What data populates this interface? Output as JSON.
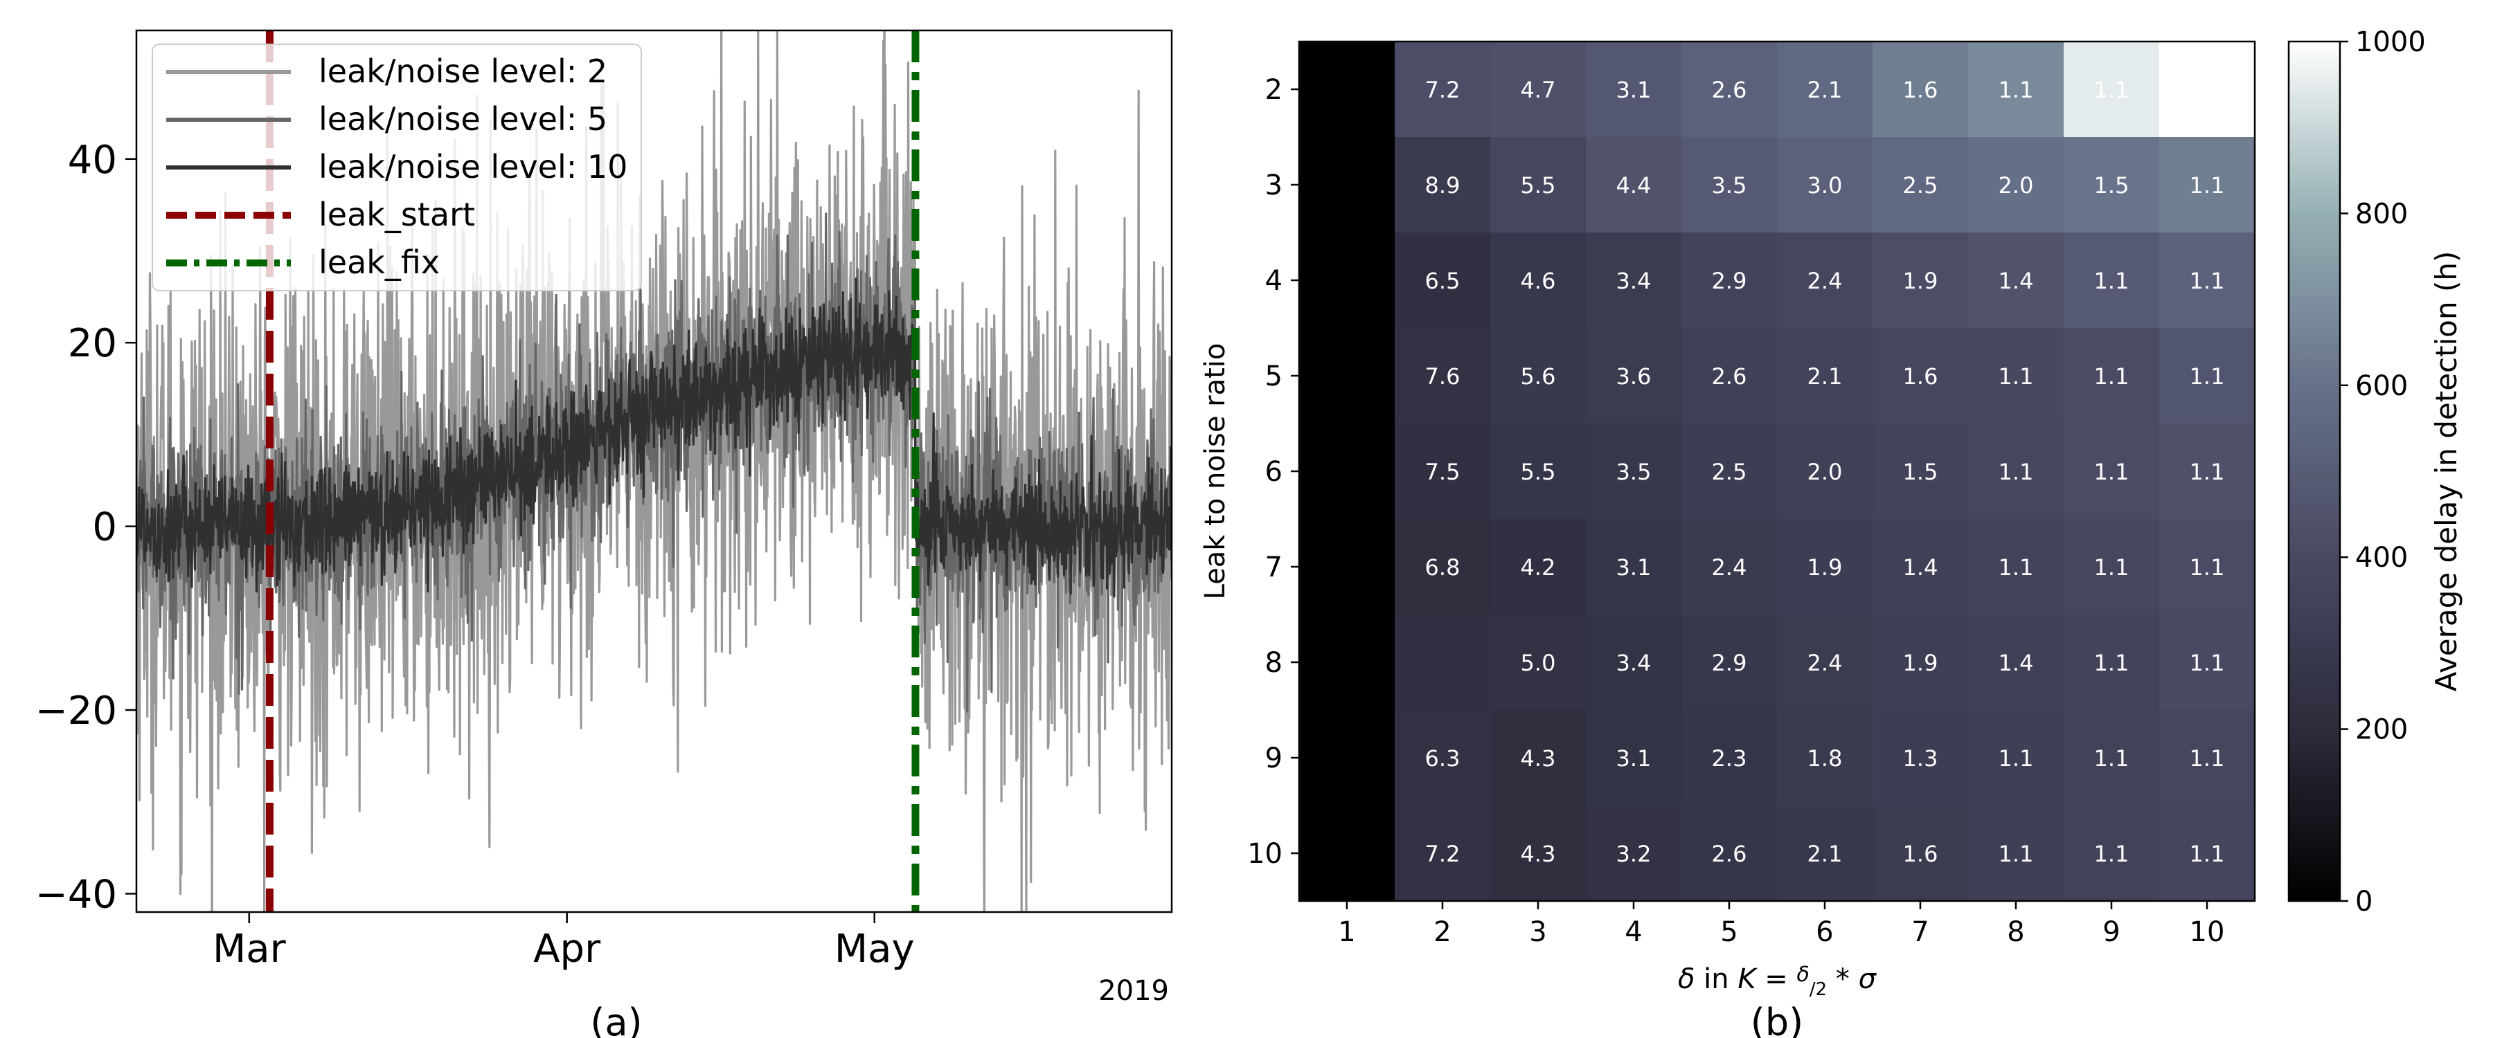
{
  "chart_data": [
    {
      "type": "line",
      "panel_label": "(a)",
      "year_label": "2019",
      "x_ticks": [
        "Mar",
        "Apr",
        "May"
      ],
      "x_range": [
        "2019-02-18",
        "2019-05-30"
      ],
      "y_ticks": [
        -40,
        -20,
        0,
        20,
        40
      ],
      "ylim": [
        -42,
        54
      ],
      "legend_position": "upper-left",
      "series": [
        {
          "name": "leak/noise level: 2",
          "color": "#999999",
          "noise_amplitude": 14,
          "peak_mean": 20
        },
        {
          "name": "leak/noise level: 5",
          "color": "#666666",
          "noise_amplitude": 5.5,
          "peak_mean": 19
        },
        {
          "name": "leak/noise level: 10",
          "color": "#303030",
          "noise_amplitude": 3,
          "peak_mean": 19
        }
      ],
      "vlines": [
        {
          "name": "leak_start",
          "date": "2019-03-03",
          "color": "#8b0000",
          "style": "dashed"
        },
        {
          "name": "leak_fix",
          "date": "2019-05-05",
          "color": "#006400",
          "style": "dashdot"
        }
      ],
      "leak_window": [
        "2019-03-03",
        "2019-05-05"
      ]
    },
    {
      "type": "heatmap",
      "panel_label": "(b)",
      "xlabel": "δ in K = (δ/2) * σ",
      "ylabel": "Leak to noise ratio",
      "x_categories": [
        1,
        2,
        3,
        4,
        5,
        6,
        7,
        8,
        9,
        10
      ],
      "y_categories": [
        2,
        3,
        4,
        5,
        6,
        7,
        8,
        9,
        10
      ],
      "colorbar_label": "Average delay in detection (h)",
      "colorbar_ticks": [
        0,
        200,
        400,
        600,
        800,
        1000
      ],
      "vmin": 0,
      "vmax": 1000,
      "values": [
        [
          0,
          420,
          440,
          470,
          520,
          560,
          640,
          680,
          950,
          1000
        ],
        [
          0,
          300,
          380,
          450,
          480,
          520,
          560,
          590,
          610,
          640
        ],
        [
          0,
          230,
          280,
          310,
          360,
          380,
          420,
          450,
          480,
          520
        ],
        [
          0,
          240,
          290,
          310,
          340,
          360,
          380,
          390,
          410,
          460
        ],
        [
          0,
          230,
          270,
          280,
          320,
          340,
          360,
          380,
          410,
          440
        ],
        [
          0,
          220,
          230,
          270,
          300,
          320,
          340,
          360,
          380,
          410
        ],
        [
          0,
          230,
          240,
          250,
          280,
          310,
          330,
          340,
          360,
          400
        ],
        [
          0,
          240,
          220,
          250,
          270,
          300,
          320,
          330,
          350,
          380
        ],
        [
          0,
          240,
          220,
          240,
          270,
          290,
          310,
          330,
          350,
          370
        ]
      ],
      "annotations": [
        [
          "",
          "7.2",
          "4.7",
          "3.1",
          "2.6",
          "2.1",
          "1.6",
          "1.1",
          "1.1",
          ""
        ],
        [
          "",
          "8.9",
          "5.5",
          "4.4",
          "3.5",
          "3.0",
          "2.5",
          "2.0",
          "1.5",
          "1.1"
        ],
        [
          "",
          "6.5",
          "4.6",
          "3.4",
          "2.9",
          "2.4",
          "1.9",
          "1.4",
          "1.1",
          "1.1"
        ],
        [
          "",
          "7.6",
          "5.6",
          "3.6",
          "2.6",
          "2.1",
          "1.6",
          "1.1",
          "1.1",
          "1.1"
        ],
        [
          "",
          "7.5",
          "5.5",
          "3.5",
          "2.5",
          "2.0",
          "1.5",
          "1.1",
          "1.1",
          "1.1"
        ],
        [
          "",
          "6.8",
          "4.2",
          "3.1",
          "2.4",
          "1.9",
          "1.4",
          "1.1",
          "1.1",
          "1.1"
        ],
        [
          "",
          "",
          "5.0",
          "3.4",
          "2.9",
          "2.4",
          "1.9",
          "1.4",
          "1.1",
          "1.1"
        ],
        [
          "",
          "6.3",
          "4.3",
          "3.1",
          "2.3",
          "1.8",
          "1.3",
          "1.1",
          "1.1",
          "1.1"
        ],
        [
          "",
          "7.2",
          "4.3",
          "3.2",
          "2.6",
          "2.1",
          "1.6",
          "1.1",
          "1.1",
          "1.1"
        ]
      ]
    }
  ]
}
